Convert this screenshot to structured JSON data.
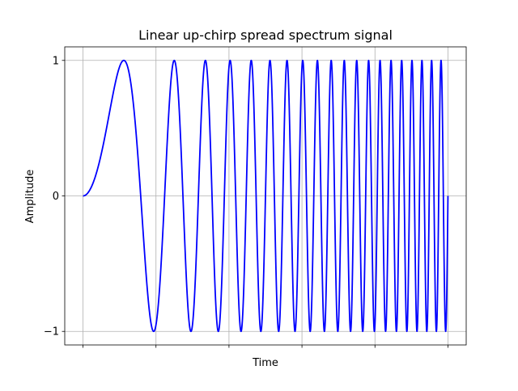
{
  "chart_data": {
    "type": "line",
    "title": "Linear up-chirp spread spectrum signal",
    "xlabel": "Time",
    "ylabel": "Amplitude",
    "grid": true,
    "x_tick_labels_shown": false,
    "x_tick_count": 6,
    "y_ticks": [
      -1,
      0,
      1
    ],
    "y_tick_labels": [
      "−1",
      "0",
      "1"
    ],
    "ylim": [
      -1.1,
      1.1
    ],
    "xlim": [
      -0.05,
      1.05
    ],
    "series": [
      {
        "color": "#0000ff",
        "function": "sin(pi * 40 * t^2)",
        "t_range": [
          0,
          1
        ],
        "sweep_rate_k": 40,
        "peaks": 20
      }
    ]
  }
}
